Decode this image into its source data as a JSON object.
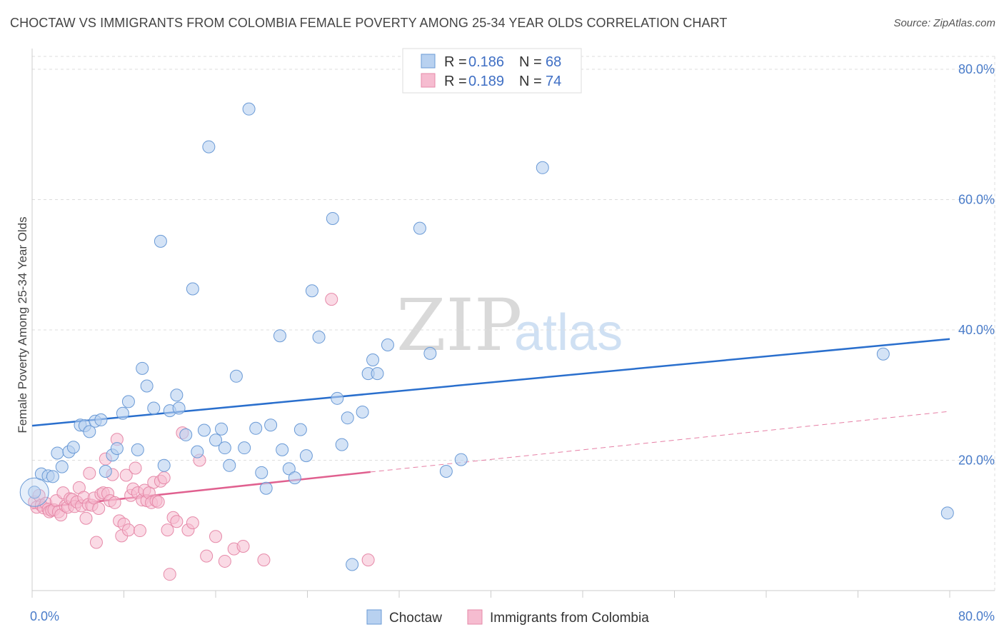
{
  "title": "CHOCTAW VS IMMIGRANTS FROM COLOMBIA FEMALE POVERTY AMONG 25-34 YEAR OLDS CORRELATION CHART",
  "source": "Source: ZipAtlas.com",
  "watermark": {
    "zip": "ZIP",
    "atlas": "atlas"
  },
  "colors": {
    "choctaw_fill": "#b8d1f0",
    "choctaw_stroke": "#6a9ad6",
    "choctaw_line": "#2a6fcd",
    "colombia_fill": "#f6bcd0",
    "colombia_stroke": "#e68aa9",
    "colombia_line": "#e0608f",
    "grid": "#dddddd",
    "tick_label": "#4a7cc9"
  },
  "legend": {
    "rows": [
      {
        "r_label": "R = ",
        "r_value": "0.186",
        "n_label": "N = ",
        "n_value": "68"
      },
      {
        "r_label": "R = ",
        "r_value": "0.189",
        "n_label": "N = ",
        "n_value": "74"
      }
    ]
  },
  "chart_data": {
    "type": "scatter",
    "ylabel": "Female Poverty Among 25-34 Year Olds",
    "xlim": [
      0,
      82
    ],
    "ylim": [
      0,
      80
    ],
    "x_tick_labels": [
      "0.0%",
      "80.0%"
    ],
    "y_tick_labels": [
      {
        "value": 20,
        "label": "20.0%"
      },
      {
        "value": 40,
        "label": "40.0%"
      },
      {
        "value": 60,
        "label": "60.0%"
      },
      {
        "value": 80,
        "label": "80.0%"
      }
    ],
    "grid": "horizontal dashed",
    "legend_position": "top-center",
    "series": [
      {
        "name": "Choctaw",
        "r": 0.186,
        "n": 68,
        "trend": {
          "x0": 0,
          "y0": 25.3,
          "x1": 80,
          "y1": 38.6
        },
        "points": [
          [
            0.2,
            15.1
          ],
          [
            0.8,
            17.9
          ],
          [
            1.4,
            17.6
          ],
          [
            1.8,
            17.5
          ],
          [
            2.2,
            21.1
          ],
          [
            2.6,
            19.0
          ],
          [
            3.2,
            21.3
          ],
          [
            3.6,
            22.0
          ],
          [
            4.2,
            25.4
          ],
          [
            4.6,
            25.3
          ],
          [
            5.0,
            24.4
          ],
          [
            5.5,
            26.0
          ],
          [
            6.0,
            26.2
          ],
          [
            6.4,
            18.3
          ],
          [
            7.0,
            20.8
          ],
          [
            7.4,
            21.8
          ],
          [
            7.9,
            27.2
          ],
          [
            8.4,
            29.0
          ],
          [
            9.2,
            21.6
          ],
          [
            9.6,
            34.1
          ],
          [
            10.0,
            31.4
          ],
          [
            10.6,
            28.0
          ],
          [
            11.2,
            53.6
          ],
          [
            11.5,
            19.2
          ],
          [
            12.0,
            27.6
          ],
          [
            12.6,
            30.0
          ],
          [
            12.8,
            28.0
          ],
          [
            13.4,
            23.9
          ],
          [
            14.0,
            46.3
          ],
          [
            14.4,
            21.3
          ],
          [
            15.0,
            24.6
          ],
          [
            15.4,
            68.1
          ],
          [
            16.0,
            23.1
          ],
          [
            16.5,
            24.8
          ],
          [
            16.8,
            21.9
          ],
          [
            17.2,
            19.2
          ],
          [
            17.8,
            32.9
          ],
          [
            18.5,
            21.9
          ],
          [
            18.9,
            73.9
          ],
          [
            19.5,
            24.9
          ],
          [
            20.0,
            18.1
          ],
          [
            20.4,
            15.7
          ],
          [
            20.8,
            25.4
          ],
          [
            21.6,
            39.1
          ],
          [
            21.8,
            21.6
          ],
          [
            22.4,
            18.7
          ],
          [
            22.9,
            17.3
          ],
          [
            23.4,
            24.7
          ],
          [
            23.9,
            20.7
          ],
          [
            24.4,
            46.0
          ],
          [
            25.0,
            38.9
          ],
          [
            26.2,
            57.1
          ],
          [
            26.6,
            29.5
          ],
          [
            27.0,
            22.4
          ],
          [
            27.5,
            26.5
          ],
          [
            27.9,
            4.0
          ],
          [
            28.8,
            27.4
          ],
          [
            29.3,
            33.3
          ],
          [
            29.7,
            35.4
          ],
          [
            30.1,
            33.3
          ],
          [
            31.0,
            37.7
          ],
          [
            33.8,
            55.6
          ],
          [
            34.7,
            36.4
          ],
          [
            36.1,
            18.3
          ],
          [
            37.4,
            20.1
          ],
          [
            44.5,
            64.9
          ],
          [
            74.2,
            36.3
          ],
          [
            79.8,
            11.9
          ]
        ]
      },
      {
        "name": "Immigrants from Colombia",
        "r": 0.189,
        "n": 74,
        "trend": {
          "x0": 0,
          "y0": 12.6,
          "x1": 29.5,
          "y1": 18.2
        },
        "trend_extension": {
          "x0": 29.5,
          "y0": 18.2,
          "x1": 80,
          "y1": 27.5
        },
        "points": [
          [
            0.2,
            13.6
          ],
          [
            0.4,
            12.8
          ],
          [
            0.6,
            14.6
          ],
          [
            0.8,
            13.1
          ],
          [
            1.0,
            12.7
          ],
          [
            1.2,
            13.4
          ],
          [
            1.4,
            12.5
          ],
          [
            1.5,
            12.1
          ],
          [
            1.7,
            12.3
          ],
          [
            1.9,
            12.4
          ],
          [
            2.1,
            13.8
          ],
          [
            2.3,
            12.1
          ],
          [
            2.5,
            11.6
          ],
          [
            2.7,
            15.0
          ],
          [
            2.9,
            13.0
          ],
          [
            3.1,
            12.8
          ],
          [
            3.3,
            14.1
          ],
          [
            3.5,
            14.0
          ],
          [
            3.7,
            12.9
          ],
          [
            3.9,
            13.6
          ],
          [
            4.1,
            15.8
          ],
          [
            4.3,
            13.0
          ],
          [
            4.5,
            14.3
          ],
          [
            4.7,
            11.1
          ],
          [
            4.9,
            13.2
          ],
          [
            5.0,
            18.0
          ],
          [
            5.2,
            13.1
          ],
          [
            5.4,
            14.2
          ],
          [
            5.6,
            7.4
          ],
          [
            5.8,
            12.6
          ],
          [
            6.0,
            14.8
          ],
          [
            6.2,
            15.0
          ],
          [
            6.4,
            20.2
          ],
          [
            6.6,
            14.9
          ],
          [
            6.8,
            13.8
          ],
          [
            7.0,
            17.8
          ],
          [
            7.2,
            13.5
          ],
          [
            7.4,
            23.2
          ],
          [
            7.6,
            10.7
          ],
          [
            7.8,
            8.4
          ],
          [
            8.0,
            10.2
          ],
          [
            8.2,
            17.7
          ],
          [
            8.4,
            9.3
          ],
          [
            8.6,
            14.6
          ],
          [
            8.8,
            15.6
          ],
          [
            9.0,
            18.8
          ],
          [
            9.2,
            15.0
          ],
          [
            9.4,
            9.2
          ],
          [
            9.6,
            13.9
          ],
          [
            9.8,
            15.4
          ],
          [
            10.0,
            13.8
          ],
          [
            10.2,
            15.0
          ],
          [
            10.4,
            13.5
          ],
          [
            10.6,
            16.6
          ],
          [
            10.8,
            13.8
          ],
          [
            11.0,
            13.6
          ],
          [
            11.2,
            16.8
          ],
          [
            11.5,
            17.3
          ],
          [
            11.8,
            9.3
          ],
          [
            12.0,
            2.5
          ],
          [
            12.3,
            11.2
          ],
          [
            12.6,
            10.6
          ],
          [
            13.1,
            24.2
          ],
          [
            13.6,
            9.3
          ],
          [
            14.0,
            10.4
          ],
          [
            14.6,
            20.0
          ],
          [
            15.2,
            5.3
          ],
          [
            16.0,
            8.3
          ],
          [
            16.8,
            4.5
          ],
          [
            17.6,
            6.4
          ],
          [
            18.4,
            6.8
          ],
          [
            20.2,
            4.7
          ],
          [
            26.1,
            44.7
          ],
          [
            29.3,
            4.7
          ]
        ]
      }
    ]
  }
}
